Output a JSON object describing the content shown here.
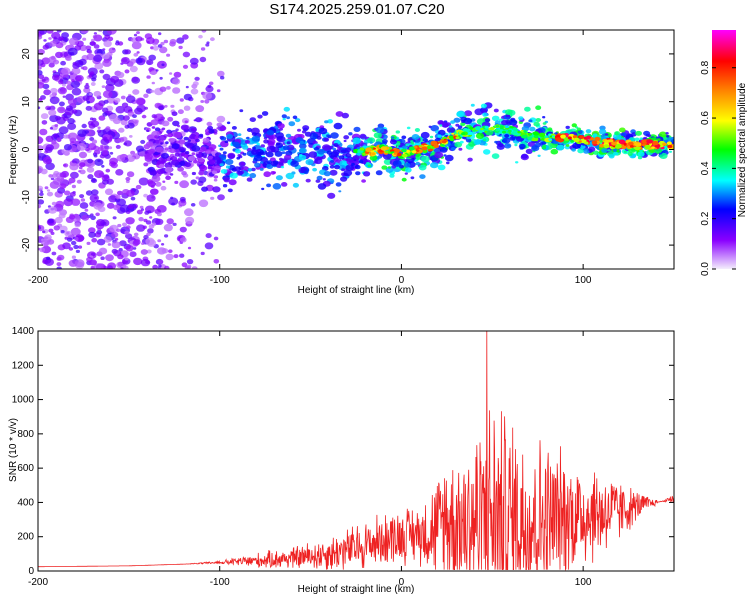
{
  "figure_title": "S174.2025.259.01.07.C20",
  "chart_data": [
    {
      "type": "heatmap",
      "title": "S174.2025.259.01.07.C20",
      "xlabel": "Height of straight line (km)",
      "ylabel": "Frequency (Hz)",
      "xlim": [
        -200,
        150
      ],
      "ylim": [
        -25,
        25
      ],
      "xticks": [
        -200,
        -100,
        0,
        100
      ],
      "yticks": [
        -20,
        -10,
        0,
        10,
        20
      ],
      "xtick_labels": [
        "-200",
        "-100",
        "0",
        "100"
      ],
      "ytick_labels": [
        "-20",
        "-10",
        "0",
        "10",
        "20"
      ],
      "ridge": {
        "x": [
          -200,
          -150,
          -120,
          -100,
          -80,
          -60,
          -40,
          -30,
          -20,
          -10,
          0,
          10,
          20,
          30,
          40,
          50,
          60,
          70,
          80,
          90,
          100,
          110,
          120,
          130,
          140,
          150
        ],
        "y": [
          0,
          0,
          0,
          -1,
          0,
          0,
          -1,
          -1,
          -0.5,
          0,
          -1,
          0,
          1,
          3,
          4,
          4.5,
          4,
          3,
          2.5,
          2.5,
          2,
          1.5,
          1,
          1,
          1,
          1
        ]
      },
      "colorbar": {
        "label": "Normalized spectral amplitude",
        "range": [
          0,
          0.95
        ],
        "ticks": [
          0.0,
          0.2,
          0.4,
          0.6,
          0.8
        ],
        "tick_labels": [
          "0.0",
          "0.2",
          "0.4",
          "0.6",
          "0.8"
        ],
        "colors": [
          "#f4eefc",
          "#8a00ff",
          "#0000ff",
          "#00ffff",
          "#00ff00",
          "#ffff00",
          "#ff8000",
          "#ff0000",
          "#ff00ff"
        ]
      }
    },
    {
      "type": "line",
      "title": "",
      "xlabel": "Height of straight line (km)",
      "ylabel": "SNR (10 * v/v)",
      "xlim": [
        -200,
        150
      ],
      "ylim": [
        0,
        1400
      ],
      "xticks": [
        -200,
        -100,
        0,
        100
      ],
      "yticks": [
        0,
        200,
        400,
        600,
        800,
        1000,
        1200,
        1400
      ],
      "xtick_labels": [
        "-200",
        "-100",
        "0",
        "100"
      ],
      "ytick_labels": [
        "0",
        "200",
        "400",
        "600",
        "800",
        "1000",
        "1200",
        "1400"
      ],
      "color": "#ee2222",
      "envelope": {
        "x": [
          -200,
          -150,
          -120,
          -100,
          -80,
          -60,
          -40,
          -20,
          -5,
          10,
          20,
          25,
          30,
          40,
          50,
          60,
          70,
          80,
          90,
          100,
          110,
          120,
          130,
          140,
          150
        ],
        "base": [
          25,
          30,
          40,
          50,
          60,
          75,
          100,
          150,
          200,
          220,
          250,
          300,
          280,
          300,
          320,
          310,
          300,
          300,
          320,
          330,
          340,
          350,
          380,
          400,
          420
        ],
        "amp": [
          25,
          30,
          40,
          60,
          110,
          150,
          220,
          320,
          380,
          420,
          600,
          800,
          780,
          950,
          1100,
          1000,
          950,
          820,
          760,
          700,
          650,
          560,
          480,
          420,
          380
        ]
      },
      "peak": {
        "x": 47,
        "y": 1420
      }
    }
  ]
}
